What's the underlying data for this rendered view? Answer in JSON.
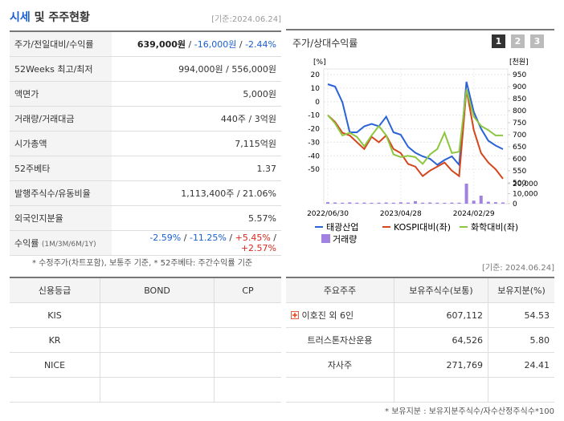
{
  "header": {
    "title_highlight": "시세",
    "title_rest": "및 주주현황",
    "date": "[기준:2024.06.24]"
  },
  "quote_table": {
    "separator": "/",
    "rows": [
      {
        "label": "주가/전일대비/수익률",
        "parts": [
          "639,000원",
          "-16,000원",
          "-2.44%"
        ]
      },
      {
        "label": "52Weeks 최고/최저",
        "parts": [
          "994,000원",
          "556,000원"
        ]
      },
      {
        "label": "액면가",
        "parts": [
          "5,000원"
        ]
      },
      {
        "label": "거래량/거래대금",
        "parts": [
          "440주",
          "3억원"
        ]
      },
      {
        "label": "시가총액",
        "parts": [
          "7,115억원"
        ]
      },
      {
        "label": "52주베타",
        "parts": [
          "1.37"
        ]
      },
      {
        "label": "발행주식수/유동비율",
        "parts": [
          "1,113,400주",
          "21.06%"
        ]
      },
      {
        "label": "외국인지분율",
        "parts": [
          "5.57%"
        ]
      },
      {
        "label": "수익률",
        "label_note": "(1M/3M/6M/1Y)",
        "parts": [
          "-2.59%",
          "-11.25%",
          "+5.45%",
          "+2.57%"
        ]
      }
    ]
  },
  "quote_note": "* 수정주가(차트포함), 보통주 기준, * 52주베타: 주간수익률 기준",
  "chart_panel": {
    "title": "주가/상대수익률",
    "tabs": [
      "1",
      "2",
      "3"
    ]
  },
  "chart_data": {
    "type": "line",
    "y_unit": "[%]",
    "y2_unit": "[천원]",
    "categories": [
      "2022/06/30",
      null,
      null,
      null,
      null,
      null,
      null,
      null,
      null,
      null,
      "2023/04/28",
      null,
      null,
      null,
      null,
      null,
      null,
      null,
      null,
      null,
      "2024/02/29",
      null,
      null,
      null,
      null
    ],
    "ylim": [
      -60,
      20
    ],
    "yticks": [
      20,
      10,
      0,
      -10,
      -20,
      -30,
      -40,
      -50
    ],
    "y2lim": [
      500,
      950
    ],
    "y2ticks": [
      950,
      900,
      850,
      800,
      750,
      700,
      650,
      600,
      550,
      500
    ],
    "volume_lim": [
      0,
      20000
    ],
    "volume_ticks": [
      {
        "value": 20000,
        "label": "20,000"
      },
      {
        "value": 10000,
        "label": "10,000"
      },
      0
    ],
    "grid": true,
    "series": [
      {
        "name": "태광산업",
        "color": "#2a62d8",
        "axis": "y2",
        "values": [
          910,
          900,
          835,
          710,
          710,
          735,
          745,
          735,
          775,
          710,
          700,
          650,
          625,
          610,
          600,
          575,
          595,
          610,
          575,
          920,
          795,
          725,
          675,
          655,
          640
        ]
      },
      {
        "name": "KOSPI대비(좌)",
        "color": "#d4461d",
        "values": [
          -10,
          -15,
          -23,
          -25,
          -30,
          -35,
          -26,
          -30,
          -25,
          -35,
          -38,
          -46,
          -48,
          -55,
          -51,
          -48,
          -45,
          -51,
          -55,
          9,
          -21,
          -38,
          -45,
          -50,
          -57
        ]
      },
      {
        "name": "화학대비(좌)",
        "color": "#8dc63f",
        "values": [
          -10,
          -16,
          -25,
          -23,
          -26,
          -33,
          -25,
          -18,
          -25,
          -39,
          -41,
          -40,
          -41,
          -46,
          -39,
          -35,
          -23,
          -38,
          -37,
          9,
          -11,
          -18,
          -21,
          -25,
          -25
        ]
      },
      {
        "name": "거래량",
        "color": "#a282e0",
        "type": "bar",
        "axis": "volume",
        "values": [
          1500,
          1200,
          1000,
          1300,
          1000,
          1100,
          900,
          1000,
          1200,
          1000,
          1400,
          1100,
          2500,
          1000,
          1200,
          1000,
          900,
          1100,
          1000,
          20000,
          3000,
          8000,
          2000,
          1500,
          1200
        ]
      }
    ]
  },
  "date2": "[기준: 2024.06.24]",
  "credit_table": {
    "header": [
      "신용등급",
      "BOND",
      "CP"
    ],
    "agencies": [
      "KIS",
      "KR",
      "NICE"
    ]
  },
  "holders_table": {
    "header": [
      "주요주주",
      "보유주식수(보통)",
      "보유지분(%)"
    ],
    "rows": [
      [
        "이호진 외 6인",
        "607,112",
        "54.53"
      ],
      [
        "트러스톤자산운용",
        "64,526",
        "5.80"
      ],
      [
        "자사주",
        "271,769",
        "24.41"
      ]
    ]
  },
  "holders_note": "* 보유지분 : 보유지분주식수/자수산정주식수*100"
}
